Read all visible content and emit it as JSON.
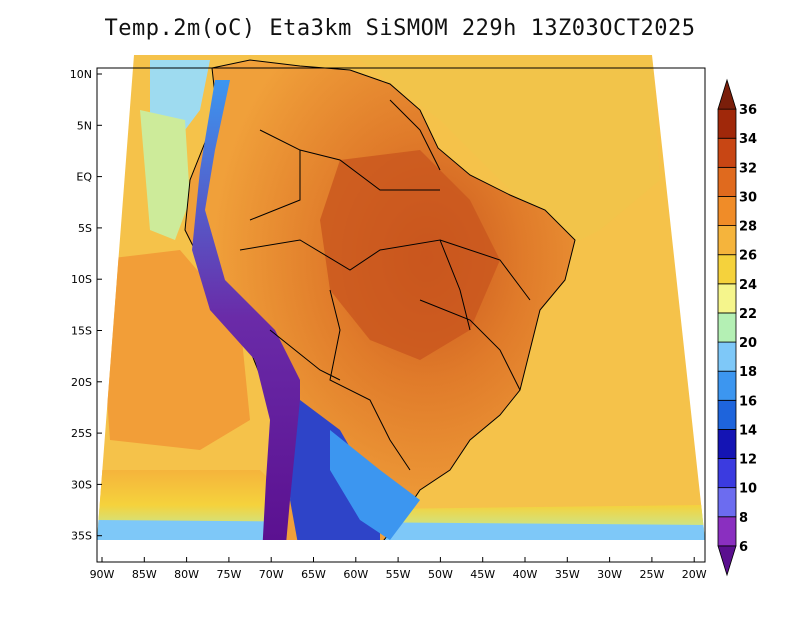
{
  "title": "Temp.2m(oC) Eta3km SiSMOM 229h 13Z03OCT2025",
  "colors": {
    "ocean_base": "#F5C24A",
    "ocean_warm": "#F2A43A",
    "land_hot": "#E07B2A",
    "land_very_hot": "#C9561E",
    "andes_cold": "#6A2BA8",
    "south_cold": "#2E44C8",
    "coast_cool": "#9EDBF0",
    "border": "#000000"
  },
  "lat_labels": [
    "10N",
    "5N",
    "EQ",
    "5S",
    "10S",
    "15S",
    "20S",
    "25S",
    "30S",
    "35S"
  ],
  "lon_labels": [
    "90W",
    "85W",
    "80W",
    "75W",
    "70W",
    "65W",
    "60W",
    "55W",
    "50W",
    "45W",
    "40W",
    "35W",
    "30W",
    "25W",
    "20W"
  ],
  "legend": {
    "labels": [
      "6",
      "8",
      "10",
      "12",
      "14",
      "16",
      "18",
      "20",
      "22",
      "24",
      "26",
      "28",
      "30",
      "32",
      "34",
      "36"
    ],
    "colors": [
      "#5A0F8F",
      "#8A2FC0",
      "#6C6CF0",
      "#3B3BE0",
      "#1414B4",
      "#1E64DC",
      "#3C96F0",
      "#7EC8F8",
      "#B4F0B4",
      "#F5F58C",
      "#F5D23C",
      "#F5B43C",
      "#F08C28",
      "#E06A1E",
      "#C84614",
      "#A0280A",
      "#7A1E0A"
    ]
  }
}
